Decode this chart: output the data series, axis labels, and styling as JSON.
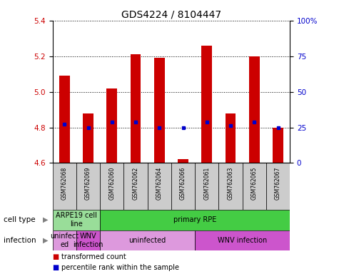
{
  "title": "GDS4224 / 8104447",
  "samples": [
    "GSM762068",
    "GSM762069",
    "GSM762060",
    "GSM762062",
    "GSM762064",
    "GSM762066",
    "GSM762061",
    "GSM762063",
    "GSM762065",
    "GSM762067"
  ],
  "bar_values": [
    5.09,
    4.88,
    5.02,
    5.21,
    5.19,
    4.62,
    5.26,
    4.88,
    5.2,
    4.8
  ],
  "bar_base": 4.6,
  "percentile_values": [
    4.82,
    4.8,
    4.83,
    4.83,
    4.8,
    4.8,
    4.83,
    4.81,
    4.83,
    4.8
  ],
  "ylim": [
    4.6,
    5.4
  ],
  "y_ticks": [
    4.6,
    4.8,
    5.0,
    5.2,
    5.4
  ],
  "y2_ticks": [
    0,
    25,
    50,
    75,
    100
  ],
  "bar_color": "#cc0000",
  "dot_color": "#0000cc",
  "bar_width": 0.45,
  "cell_type_labels": [
    {
      "text": "ARPE19 cell\nline",
      "start": 0,
      "end": 2,
      "color": "#99dd99"
    },
    {
      "text": "primary RPE",
      "start": 2,
      "end": 10,
      "color": "#44cc44"
    }
  ],
  "infection_labels": [
    {
      "text": "uninfect\ned",
      "start": 0,
      "end": 1,
      "color": "#dd99dd"
    },
    {
      "text": "WNV\ninfection",
      "start": 1,
      "end": 2,
      "color": "#cc55cc"
    },
    {
      "text": "uninfected",
      "start": 2,
      "end": 6,
      "color": "#dd99dd"
    },
    {
      "text": "WNV infection",
      "start": 6,
      "end": 10,
      "color": "#cc55cc"
    }
  ],
  "legend_bar_label": "transformed count",
  "legend_dot_label": "percentile rank within the sample",
  "cell_type_row_label": "cell type",
  "infection_row_label": "infection",
  "title_fontsize": 10,
  "tick_fontsize": 7.5,
  "label_fontsize": 7.5,
  "sample_fontsize": 5.5,
  "annotation_fontsize": 7,
  "row_label_fontsize": 7.5,
  "legend_fontsize": 7,
  "bg_color": "#ffffff",
  "sample_box_color": "#cccccc",
  "grid_color": "#000000",
  "spine_color": "#000000"
}
